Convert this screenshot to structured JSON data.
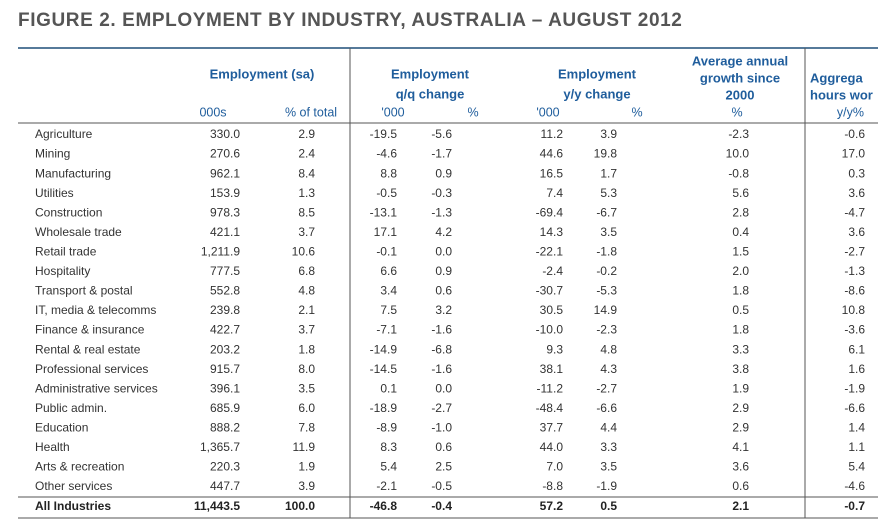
{
  "title": "FIGURE 2. EMPLOYMENT BY INDUSTRY, AUSTRALIA – AUGUST 2012",
  "table": {
    "groups": [
      [
        "Employment (sa)"
      ],
      [
        "Employment",
        "q/q change"
      ],
      [
        "Employment",
        "y/y change"
      ],
      [
        "Average annual",
        "growth since",
        "2000"
      ],
      [
        "Aggrega",
        "hours wor"
      ]
    ],
    "subheaders": [
      "000s",
      "% of total",
      "'000",
      "%",
      "'000",
      "%",
      "%",
      "y/y%"
    ],
    "rows": [
      [
        "Agriculture",
        "330.0",
        "2.9",
        "-19.5",
        "-5.6",
        "11.2",
        "3.9",
        "-2.3",
        "-0.6"
      ],
      [
        "Mining",
        "270.6",
        "2.4",
        "-4.6",
        "-1.7",
        "44.6",
        "19.8",
        "10.0",
        "17.0"
      ],
      [
        "Manufacturing",
        "962.1",
        "8.4",
        "8.8",
        "0.9",
        "16.5",
        "1.7",
        "-0.8",
        "0.3"
      ],
      [
        "Utilities",
        "153.9",
        "1.3",
        "-0.5",
        "-0.3",
        "7.4",
        "5.3",
        "5.6",
        "3.6"
      ],
      [
        "Construction",
        "978.3",
        "8.5",
        "-13.1",
        "-1.3",
        "-69.4",
        "-6.7",
        "2.8",
        "-4.7"
      ],
      [
        "Wholesale trade",
        "421.1",
        "3.7",
        "17.1",
        "4.2",
        "14.3",
        "3.5",
        "0.4",
        "3.6"
      ],
      [
        "Retail trade",
        "1,211.9",
        "10.6",
        "-0.1",
        "0.0",
        "-22.1",
        "-1.8",
        "1.5",
        "-2.7"
      ],
      [
        "Hospitality",
        "777.5",
        "6.8",
        "6.6",
        "0.9",
        "-2.4",
        "-0.2",
        "2.0",
        "-1.3"
      ],
      [
        "Transport & postal",
        "552.8",
        "4.8",
        "3.4",
        "0.6",
        "-30.7",
        "-5.3",
        "1.8",
        "-8.6"
      ],
      [
        "IT, media & telecomms",
        "239.8",
        "2.1",
        "7.5",
        "3.2",
        "30.5",
        "14.9",
        "0.5",
        "10.8"
      ],
      [
        "Finance & insurance",
        "422.7",
        "3.7",
        "-7.1",
        "-1.6",
        "-10.0",
        "-2.3",
        "1.8",
        "-3.6"
      ],
      [
        "Rental & real estate",
        "203.2",
        "1.8",
        "-14.9",
        "-6.8",
        "9.3",
        "4.8",
        "3.3",
        "6.1"
      ],
      [
        "Professional services",
        "915.7",
        "8.0",
        "-14.5",
        "-1.6",
        "38.1",
        "4.3",
        "3.8",
        "1.6"
      ],
      [
        "Administrative services",
        "396.1",
        "3.5",
        "0.1",
        "0.0",
        "-11.2",
        "-2.7",
        "1.9",
        "-1.9"
      ],
      [
        "Public admin.",
        "685.9",
        "6.0",
        "-18.9",
        "-2.7",
        "-48.4",
        "-6.6",
        "2.9",
        "-6.6"
      ],
      [
        "Education",
        "888.2",
        "7.8",
        "-8.9",
        "-1.0",
        "37.7",
        "4.4",
        "2.9",
        "1.4"
      ],
      [
        "Health",
        "1,365.7",
        "11.9",
        "8.3",
        "0.6",
        "44.0",
        "3.3",
        "4.1",
        "1.1"
      ],
      [
        "Arts & recreation",
        "220.3",
        "1.9",
        "5.4",
        "2.5",
        "7.0",
        "3.5",
        "3.6",
        "5.4"
      ],
      [
        "Other services",
        "447.7",
        "3.9",
        "-2.1",
        "-0.5",
        "-8.8",
        "-1.9",
        "0.6",
        "-4.6"
      ]
    ],
    "total": [
      "All Industries",
      "11,443.5",
      "100.0",
      "-46.8",
      "-0.4",
      "57.2",
      "0.5",
      "2.1",
      "-0.7"
    ]
  }
}
